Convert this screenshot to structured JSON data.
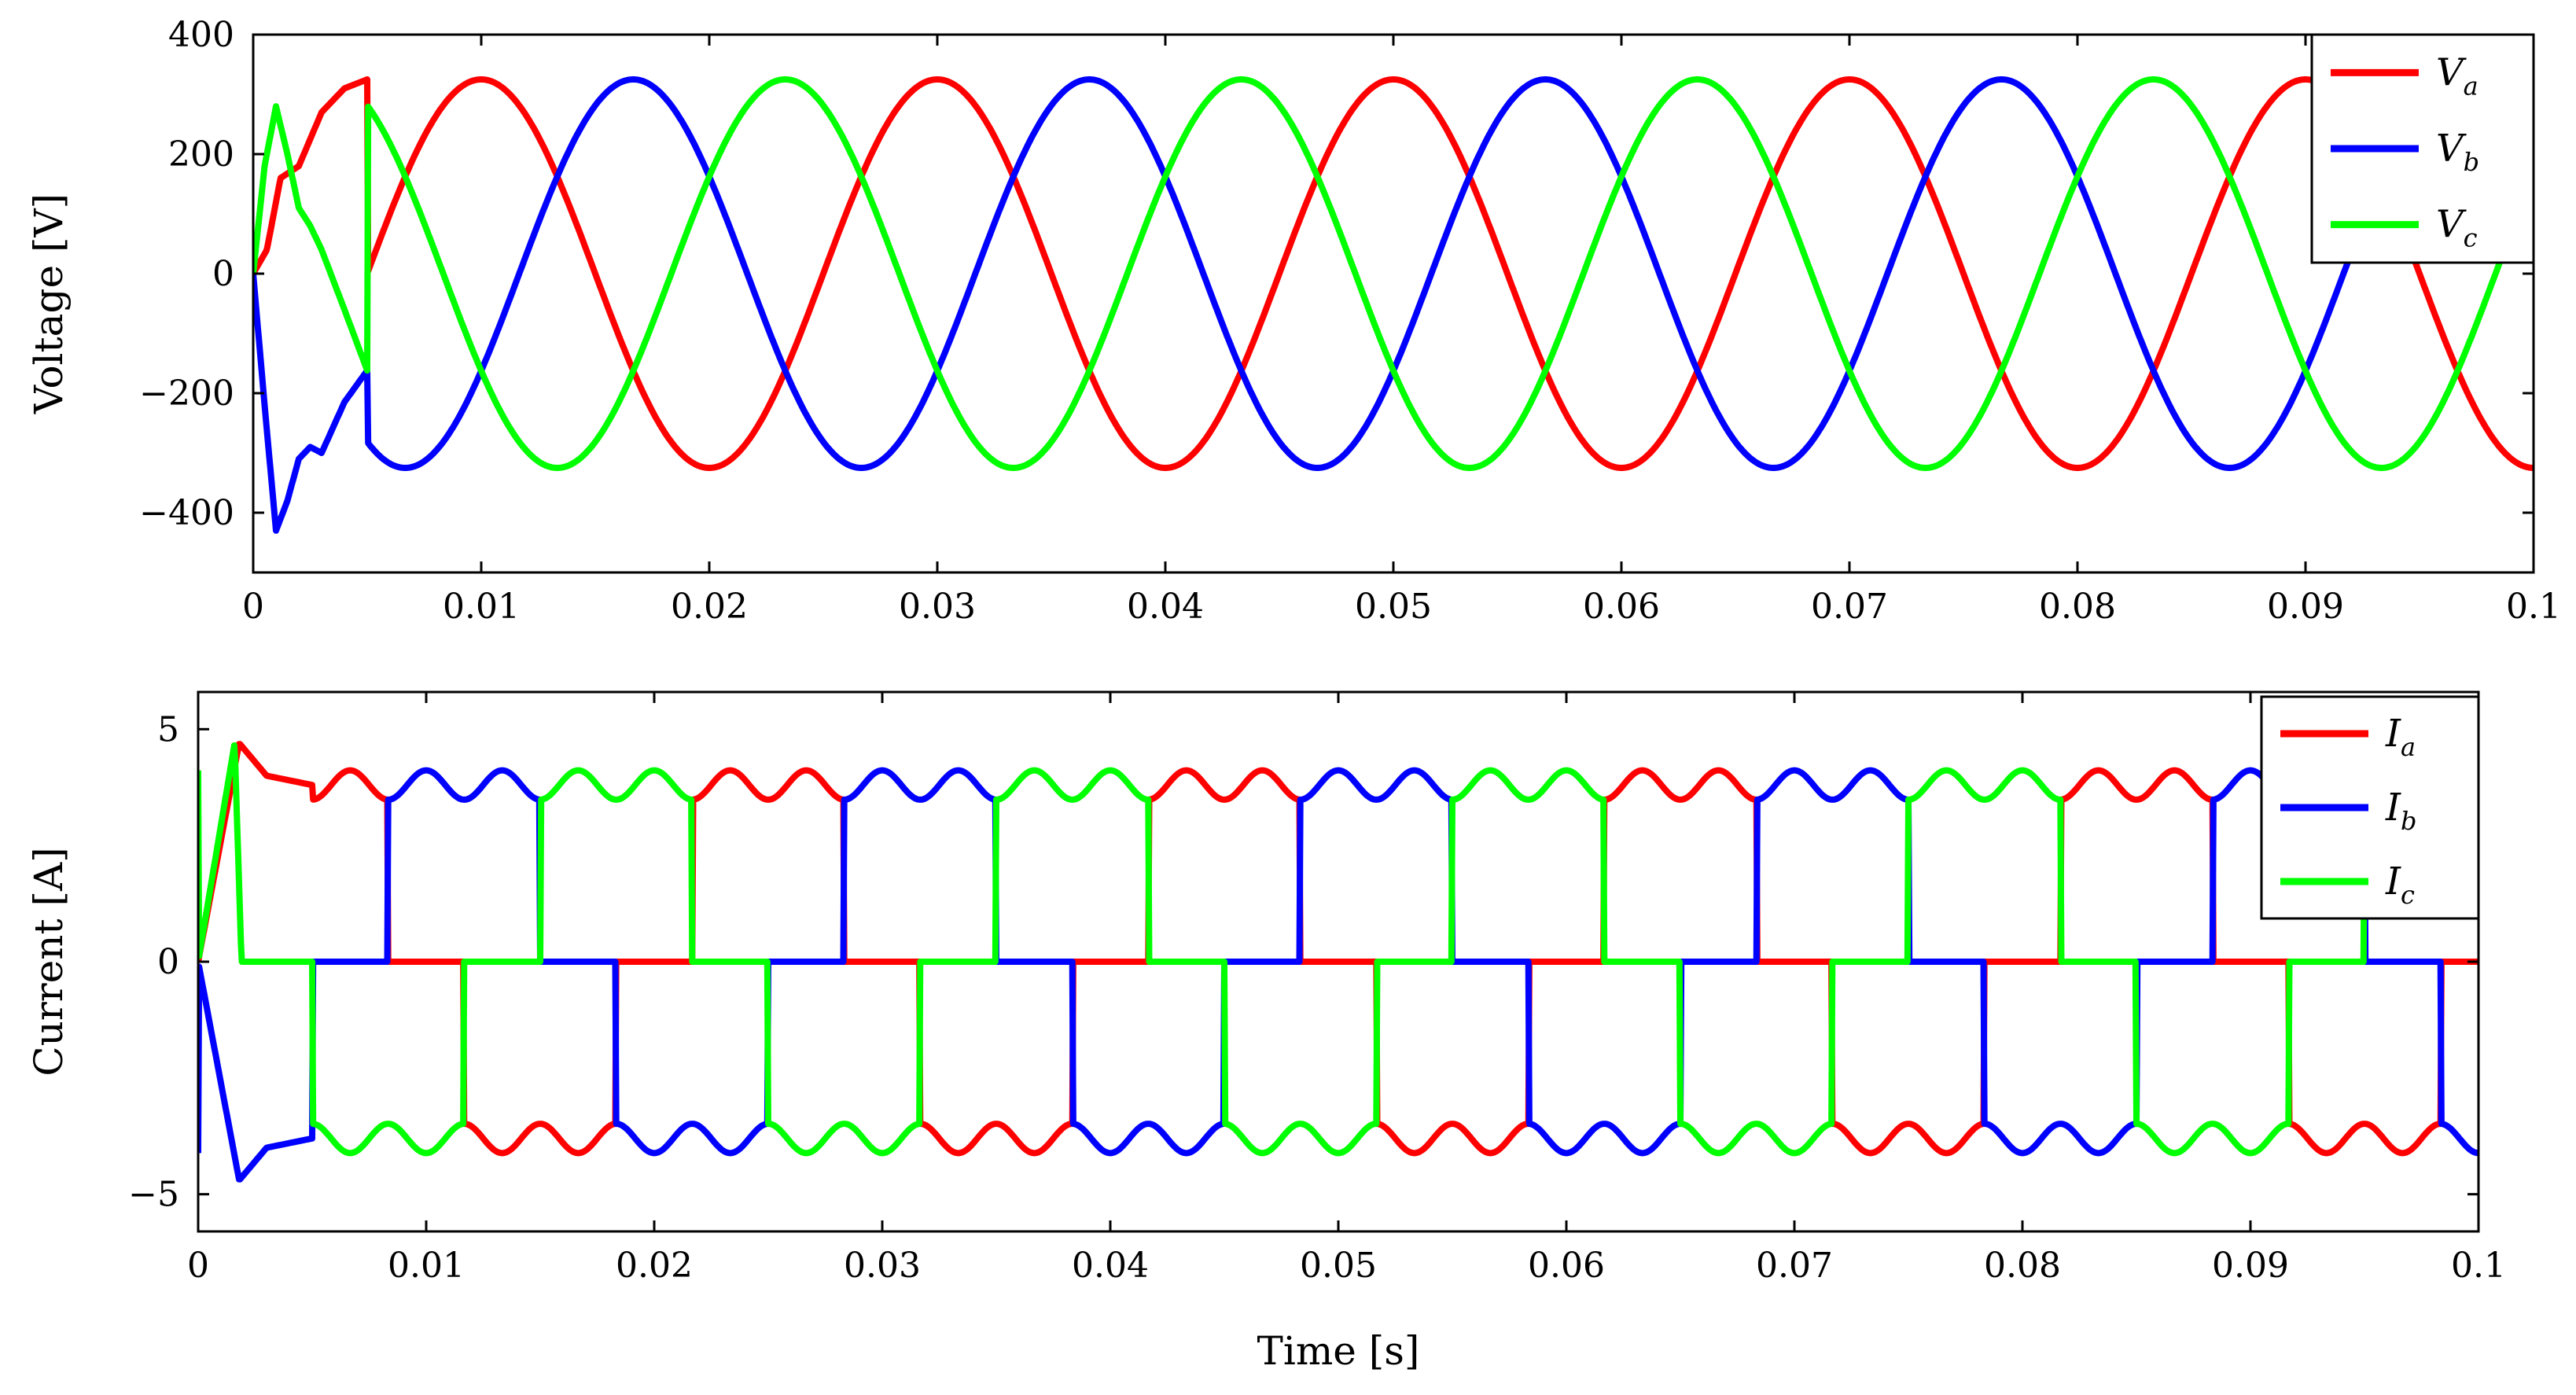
{
  "chart_data": [
    {
      "type": "line",
      "ylabel": "Voltage [V]",
      "xlabel": "",
      "xlim": [
        0,
        0.1
      ],
      "ylim": [
        -500,
        400
      ],
      "x_ticks": [
        {
          "value": 0,
          "label": "0"
        },
        {
          "value": 0.01,
          "label": "0.01"
        },
        {
          "value": 0.02,
          "label": "0.02"
        },
        {
          "value": 0.03,
          "label": "0.03"
        },
        {
          "value": 0.04,
          "label": "0.04"
        },
        {
          "value": 0.05,
          "label": "0.05"
        },
        {
          "value": 0.06,
          "label": "0.06"
        },
        {
          "value": 0.07,
          "label": "0.07"
        },
        {
          "value": 0.08,
          "label": "0.08"
        },
        {
          "value": 0.09,
          "label": "0.09"
        },
        {
          "value": 0.1,
          "label": "0.1"
        }
      ],
      "y_ticks": [
        {
          "value": 400,
          "label": "400"
        },
        {
          "value": 200,
          "label": "200"
        },
        {
          "value": 0,
          "label": "0"
        },
        {
          "value": -200,
          "label": "−200"
        },
        {
          "value": -400,
          "label": "−400"
        }
      ],
      "grid": false,
      "legend_position": "top-right",
      "model": "three-phase sine, amplitude 325 V, frequency 50 Hz, phase shift 120 degrees, start-up transient before 0.005 s",
      "series": [
        {
          "name": "V",
          "sub": "a",
          "color": "#ff0000",
          "amplitude": 325,
          "frequency_hz": 50,
          "phase_deg": -90,
          "startup": [
            [
              0,
              0
            ],
            [
              0.0006,
              40
            ],
            [
              0.0012,
              160
            ],
            [
              0.002,
              180
            ],
            [
              0.003,
              270
            ],
            [
              0.004,
              310
            ],
            [
              0.005,
              325
            ]
          ]
        },
        {
          "name": "V",
          "sub": "b",
          "color": "#0000ff",
          "amplitude": 325,
          "frequency_hz": 50,
          "phase_deg": -210,
          "startup": [
            [
              0,
              0
            ],
            [
              0.0005,
              -220
            ],
            [
              0.001,
              -430
            ],
            [
              0.0015,
              -380
            ],
            [
              0.002,
              -310
            ],
            [
              0.0025,
              -290
            ],
            [
              0.003,
              -300
            ],
            [
              0.004,
              -215
            ],
            [
              0.005,
              -162
            ]
          ]
        },
        {
          "name": "V",
          "sub": "c",
          "color": "#00ff00",
          "amplitude": 325,
          "frequency_hz": 50,
          "phase_deg": 30,
          "startup": [
            [
              0,
              0
            ],
            [
              0.0005,
              180
            ],
            [
              0.001,
              280
            ],
            [
              0.0015,
              200
            ],
            [
              0.002,
              110
            ],
            [
              0.0025,
              80
            ],
            [
              0.003,
              40
            ],
            [
              0.004,
              -60
            ],
            [
              0.005,
              -162
            ]
          ]
        }
      ]
    },
    {
      "type": "line",
      "ylabel": "Current [A]",
      "xlabel": "Time [s]",
      "xlim": [
        0,
        0.1
      ],
      "ylim": [
        -5.8,
        5.8
      ],
      "x_ticks": [
        {
          "value": 0,
          "label": "0"
        },
        {
          "value": 0.01,
          "label": "0.01"
        },
        {
          "value": 0.02,
          "label": "0.02"
        },
        {
          "value": 0.03,
          "label": "0.03"
        },
        {
          "value": 0.04,
          "label": "0.04"
        },
        {
          "value": 0.05,
          "label": "0.05"
        },
        {
          "value": 0.06,
          "label": "0.06"
        },
        {
          "value": 0.07,
          "label": "0.07"
        },
        {
          "value": 0.08,
          "label": "0.08"
        },
        {
          "value": 0.09,
          "label": "0.09"
        },
        {
          "value": 0.1,
          "label": "0.1"
        }
      ],
      "y_ticks": [
        {
          "value": 5,
          "label": "5"
        },
        {
          "value": 0,
          "label": "0"
        },
        {
          "value": -5,
          "label": "−5"
        }
      ],
      "grid": false,
      "legend_position": "top-right",
      "model": "six-step quasi-square currents, peak about 3.8 A with ripple, 50 Hz, 120 degree phase shift, start-up transient to about 4.7 A",
      "series": [
        {
          "name": "I",
          "sub": "a",
          "color": "#ff0000",
          "level": 3.8,
          "ripple": 0.35,
          "frequency_hz": 50,
          "phase_deg": 0,
          "startup": [
            [
              0,
              0
            ],
            [
              0.0018,
              4.7
            ],
            [
              0.003,
              4.0
            ],
            [
              0.005,
              3.8
            ]
          ]
        },
        {
          "name": "I",
          "sub": "b",
          "color": "#0000ff",
          "level": 3.8,
          "ripple": 0.35,
          "frequency_hz": 50,
          "phase_deg": -120,
          "startup": [
            [
              0,
              0
            ],
            [
              0.0018,
              -4.7
            ],
            [
              0.003,
              -4.0
            ],
            [
              0.005,
              -3.8
            ]
          ]
        },
        {
          "name": "I",
          "sub": "c",
          "color": "#00ff00",
          "level": 3.8,
          "ripple": 0.35,
          "frequency_hz": 50,
          "phase_deg": 120,
          "startup": [
            [
              0,
              0
            ],
            [
              0.0016,
              4.7
            ],
            [
              0.0019,
              0
            ]
          ]
        }
      ]
    }
  ]
}
